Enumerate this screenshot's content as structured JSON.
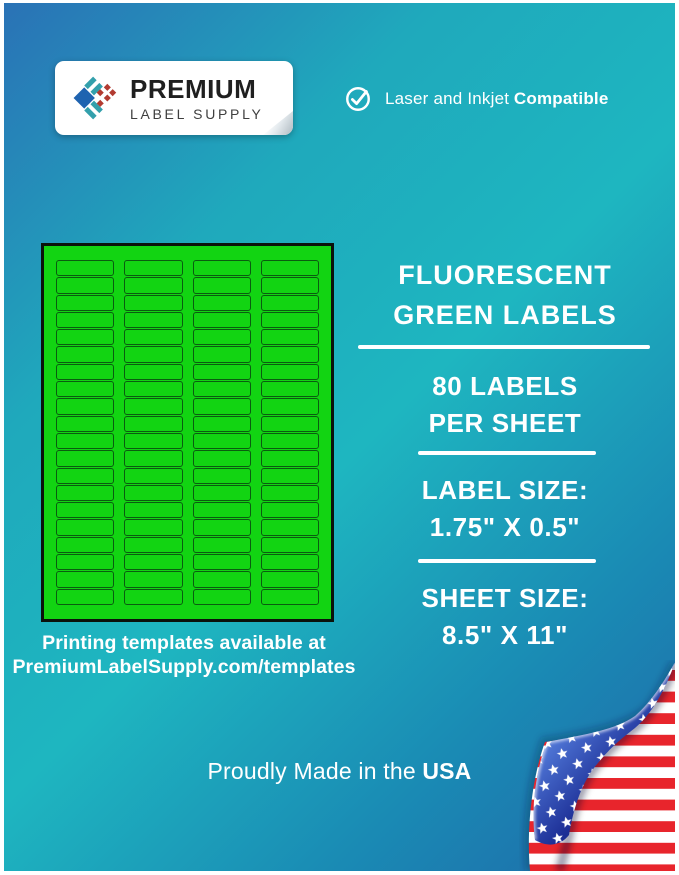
{
  "brand": {
    "line1": "PREMIUM",
    "line2": "LABEL SUPPLY",
    "logo_icon": "diamond-mosaic-logo"
  },
  "compatibility": {
    "regular": "Laser and Inkjet",
    "bold": "Compatible",
    "icon": "check-circle-icon"
  },
  "headline": {
    "line1": "FLUORESCENT",
    "line2": "GREEN LABELS"
  },
  "specs": {
    "labels_per_sheet": {
      "line1": "80 LABELS",
      "line2": "PER SHEET"
    },
    "label_size": {
      "line1": "LABEL SIZE:",
      "line2": "1.75\" X 0.5\""
    },
    "sheet_size": {
      "line1": "SHEET SIZE:",
      "line2": "8.5\" X 11\""
    }
  },
  "sheet_preview": {
    "columns": 4,
    "rows": 20,
    "label_count": 80
  },
  "templates_note": {
    "line1": "Printing templates available at",
    "line2": "PremiumLabelSupply.com/templates"
  },
  "footer": {
    "regular": "Proudly Made in the",
    "bold": "USA"
  },
  "colors": {
    "gradient_blue": "#2a72b6",
    "gradient_teal": "#1eb6c0",
    "gradient_deep_blue": "#1f67a9",
    "label_green": "#12d412",
    "label_border_green": "#0a5c10",
    "flag_red": "#e8252c",
    "flag_canton_blue": "#1d2f96",
    "logo_blue": "#1f63b0",
    "logo_teal": "#33a0ac",
    "logo_red": "#b23b31"
  }
}
